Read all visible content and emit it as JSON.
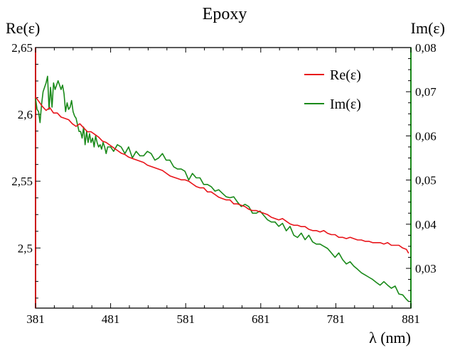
{
  "chart_data": {
    "type": "line",
    "title": "Epoxy",
    "xlabel": "λ (nm)",
    "ylabel_left": "Re(ε)",
    "ylabel_right": "Im(ε)",
    "xlim": [
      381,
      881
    ],
    "ylim_left": [
      2.455,
      2.65
    ],
    "ylim_right": [
      0.021,
      0.08
    ],
    "x_ticks": [
      381,
      481,
      581,
      681,
      781,
      881
    ],
    "x_tick_labels": [
      "381",
      "481",
      "581",
      "681",
      "781",
      "881"
    ],
    "y_left_ticks": [
      2.5,
      2.55,
      2.6,
      2.65
    ],
    "y_left_tick_labels": [
      "2,5",
      "2,55",
      "2,6",
      "2,65"
    ],
    "y_right_ticks": [
      0.03,
      0.04,
      0.05,
      0.06,
      0.07,
      0.08
    ],
    "y_right_tick_labels": [
      "0,03",
      "0,04",
      "0,05",
      "0,06",
      "0,07",
      "0,08"
    ],
    "legend_position": "top-right",
    "grid": false,
    "series": [
      {
        "name": "Re(ε)",
        "axis": "left",
        "color": "#e8141a",
        "x": [
          381,
          385,
          390,
          395,
          400,
          405,
          410,
          415,
          420,
          425,
          430,
          435,
          440,
          445,
          450,
          455,
          460,
          465,
          470,
          475,
          480,
          485,
          490,
          495,
          500,
          505,
          510,
          515,
          520,
          525,
          530,
          535,
          540,
          545,
          550,
          555,
          560,
          565,
          570,
          575,
          580,
          585,
          590,
          595,
          600,
          605,
          610,
          615,
          620,
          625,
          630,
          635,
          640,
          645,
          650,
          655,
          660,
          665,
          670,
          675,
          680,
          685,
          690,
          695,
          700,
          705,
          710,
          715,
          720,
          725,
          730,
          735,
          740,
          745,
          750,
          755,
          760,
          765,
          770,
          775,
          780,
          785,
          790,
          795,
          800,
          805,
          810,
          815,
          820,
          825,
          830,
          835,
          840,
          845,
          850,
          855,
          860,
          865,
          870,
          875,
          878
        ],
        "y": [
          2.613,
          2.61,
          2.606,
          2.603,
          2.605,
          2.601,
          2.601,
          2.598,
          2.597,
          2.596,
          2.593,
          2.591,
          2.593,
          2.59,
          2.587,
          2.587,
          2.585,
          2.583,
          2.58,
          2.579,
          2.577,
          2.575,
          2.573,
          2.571,
          2.57,
          2.568,
          2.567,
          2.566,
          2.565,
          2.564,
          2.562,
          2.561,
          2.56,
          2.559,
          2.558,
          2.556,
          2.554,
          2.553,
          2.552,
          2.551,
          2.551,
          2.55,
          2.548,
          2.546,
          2.545,
          2.545,
          2.542,
          2.542,
          2.54,
          2.538,
          2.537,
          2.536,
          2.536,
          2.533,
          2.533,
          2.532,
          2.531,
          2.529,
          2.528,
          2.528,
          2.527,
          2.526,
          2.525,
          2.523,
          2.522,
          2.521,
          2.522,
          2.52,
          2.518,
          2.517,
          2.517,
          2.516,
          2.516,
          2.514,
          2.513,
          2.513,
          2.512,
          2.513,
          2.511,
          2.51,
          2.51,
          2.508,
          2.508,
          2.507,
          2.508,
          2.507,
          2.506,
          2.506,
          2.505,
          2.505,
          2.504,
          2.504,
          2.504,
          2.503,
          2.504,
          2.502,
          2.502,
          2.502,
          2.5,
          2.499,
          2.496
        ]
      },
      {
        "name": "Im(ε)",
        "axis": "right",
        "color": "#1a8a1a",
        "x": [
          381,
          383,
          385,
          387,
          389,
          391,
          393,
          395,
          397,
          399,
          401,
          403,
          405,
          407,
          409,
          411,
          413,
          415,
          417,
          419,
          421,
          423,
          425,
          427,
          429,
          431,
          433,
          435,
          437,
          439,
          441,
          443,
          445,
          447,
          449,
          451,
          453,
          455,
          457,
          459,
          461,
          463,
          465,
          467,
          469,
          471,
          473,
          475,
          477,
          479,
          481,
          485,
          490,
          495,
          500,
          505,
          510,
          515,
          520,
          525,
          530,
          535,
          540,
          545,
          550,
          555,
          560,
          565,
          570,
          575,
          580,
          585,
          590,
          595,
          600,
          605,
          610,
          615,
          620,
          625,
          630,
          635,
          640,
          645,
          650,
          655,
          660,
          665,
          670,
          675,
          680,
          685,
          690,
          695,
          700,
          705,
          710,
          715,
          720,
          725,
          730,
          735,
          740,
          745,
          750,
          755,
          760,
          765,
          770,
          775,
          780,
          785,
          790,
          795,
          800,
          805,
          810,
          815,
          820,
          825,
          830,
          835,
          840,
          845,
          850,
          855,
          860,
          865,
          870,
          875,
          878
        ],
        "y": [
          0.0685,
          0.066,
          0.0655,
          0.063,
          0.067,
          0.07,
          0.071,
          0.072,
          0.0735,
          0.066,
          0.071,
          0.0665,
          0.072,
          0.0705,
          0.0715,
          0.0725,
          0.0715,
          0.0705,
          0.0715,
          0.0695,
          0.0655,
          0.0675,
          0.066,
          0.0665,
          0.068,
          0.0655,
          0.0645,
          0.064,
          0.0625,
          0.061,
          0.061,
          0.0595,
          0.062,
          0.058,
          0.061,
          0.0585,
          0.0605,
          0.0585,
          0.0595,
          0.0575,
          0.06,
          0.0585,
          0.0575,
          0.058,
          0.057,
          0.0585,
          0.0575,
          0.056,
          0.0575,
          0.0575,
          0.0575,
          0.0565,
          0.058,
          0.0575,
          0.056,
          0.0575,
          0.055,
          0.0565,
          0.0555,
          0.0555,
          0.0565,
          0.056,
          0.0545,
          0.055,
          0.056,
          0.0545,
          0.0545,
          0.053,
          0.0525,
          0.0525,
          0.052,
          0.05,
          0.0515,
          0.0505,
          0.0505,
          0.049,
          0.049,
          0.0485,
          0.0475,
          0.0478,
          0.047,
          0.0462,
          0.046,
          0.0462,
          0.045,
          0.044,
          0.0445,
          0.044,
          0.0425,
          0.0425,
          0.043,
          0.042,
          0.041,
          0.0405,
          0.0405,
          0.0395,
          0.0402,
          0.0385,
          0.0395,
          0.0375,
          0.037,
          0.038,
          0.0365,
          0.0375,
          0.036,
          0.0355,
          0.0355,
          0.035,
          0.0345,
          0.0335,
          0.0325,
          0.0335,
          0.032,
          0.031,
          0.0315,
          0.0305,
          0.0298,
          0.029,
          0.0285,
          0.028,
          0.0275,
          0.0268,
          0.0262,
          0.027,
          0.0262,
          0.0255,
          0.026,
          0.0242,
          0.024,
          0.023,
          0.0225
        ]
      }
    ]
  }
}
